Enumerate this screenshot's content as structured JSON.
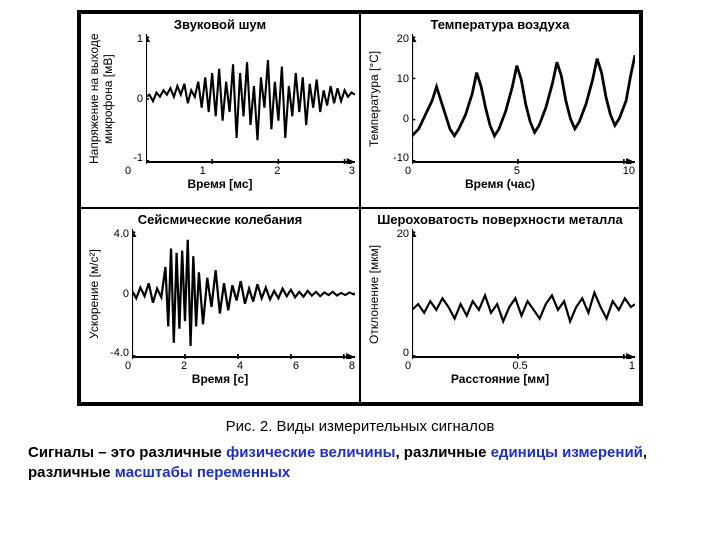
{
  "figure": {
    "panels": [
      {
        "key": "sound",
        "title": "Звуковой шум",
        "ylabel": "Напряжение на выходе\nмикрофона [мB]",
        "xlabel": "Время [мс]",
        "yticks": [
          "1",
          "0",
          "-1"
        ],
        "xticks": [
          "0",
          "1",
          "2",
          "3"
        ],
        "xlim": [
          0,
          3
        ],
        "ylim": [
          -1.5,
          1.5
        ],
        "line_color": "#000000",
        "line_width": 2,
        "data": [
          [
            0,
            0.05
          ],
          [
            0.05,
            0.1
          ],
          [
            0.1,
            -0.05
          ],
          [
            0.15,
            0.15
          ],
          [
            0.2,
            0.05
          ],
          [
            0.25,
            0.2
          ],
          [
            0.3,
            0.1
          ],
          [
            0.35,
            0.25
          ],
          [
            0.4,
            0.05
          ],
          [
            0.45,
            0.3
          ],
          [
            0.5,
            0.1
          ],
          [
            0.55,
            0.35
          ],
          [
            0.6,
            -0.1
          ],
          [
            0.65,
            0.2
          ],
          [
            0.7,
            0.05
          ],
          [
            0.75,
            0.4
          ],
          [
            0.8,
            -0.2
          ],
          [
            0.85,
            0.5
          ],
          [
            0.9,
            -0.3
          ],
          [
            0.95,
            0.6
          ],
          [
            1.0,
            -0.4
          ],
          [
            1.05,
            0.7
          ],
          [
            1.1,
            -0.5
          ],
          [
            1.15,
            0.4
          ],
          [
            1.2,
            -0.3
          ],
          [
            1.25,
            0.8
          ],
          [
            1.3,
            -0.9
          ],
          [
            1.35,
            0.6
          ],
          [
            1.4,
            -0.4
          ],
          [
            1.45,
            0.85
          ],
          [
            1.5,
            -0.6
          ],
          [
            1.55,
            0.3
          ],
          [
            1.6,
            -0.95
          ],
          [
            1.65,
            0.5
          ],
          [
            1.7,
            -0.2
          ],
          [
            1.75,
            0.9
          ],
          [
            1.8,
            -0.7
          ],
          [
            1.85,
            0.4
          ],
          [
            1.9,
            -0.5
          ],
          [
            1.95,
            0.75
          ],
          [
            2.0,
            -0.9
          ],
          [
            2.05,
            0.3
          ],
          [
            2.1,
            -0.4
          ],
          [
            2.15,
            0.6
          ],
          [
            2.2,
            -0.3
          ],
          [
            2.25,
            0.5
          ],
          [
            2.3,
            -0.6
          ],
          [
            2.35,
            0.35
          ],
          [
            2.4,
            -0.2
          ],
          [
            2.45,
            0.45
          ],
          [
            2.5,
            -0.3
          ],
          [
            2.55,
            0.2
          ],
          [
            2.6,
            -0.15
          ],
          [
            2.65,
            0.3
          ],
          [
            2.7,
            -0.1
          ],
          [
            2.75,
            0.25
          ],
          [
            2.8,
            -0.05
          ],
          [
            2.85,
            0.2
          ],
          [
            2.9,
            0.05
          ],
          [
            2.95,
            0.15
          ],
          [
            3.0,
            0.1
          ]
        ]
      },
      {
        "key": "temperature",
        "title": "Температура воздуха",
        "ylabel": "Температура [°С]",
        "xlabel": "Время (час)",
        "yticks": [
          "20",
          "10",
          "0",
          "-10"
        ],
        "xticks": [
          "0",
          "5",
          "10"
        ],
        "xlim": [
          0,
          10
        ],
        "ylim": [
          -12,
          25
        ],
        "line_color": "#000000",
        "line_width": 2.5,
        "data": [
          [
            0,
            -4
          ],
          [
            0.3,
            -2
          ],
          [
            0.6,
            2
          ],
          [
            0.9,
            6
          ],
          [
            1.1,
            10
          ],
          [
            1.3,
            6
          ],
          [
            1.5,
            2
          ],
          [
            1.7,
            -2
          ],
          [
            1.9,
            -4
          ],
          [
            2.1,
            -2
          ],
          [
            2.4,
            2
          ],
          [
            2.7,
            8
          ],
          [
            2.9,
            14
          ],
          [
            3.1,
            10
          ],
          [
            3.3,
            4
          ],
          [
            3.5,
            -1
          ],
          [
            3.7,
            -4
          ],
          [
            3.9,
            -2
          ],
          [
            4.2,
            3
          ],
          [
            4.5,
            10
          ],
          [
            4.7,
            16
          ],
          [
            4.9,
            12
          ],
          [
            5.1,
            5
          ],
          [
            5.3,
            0
          ],
          [
            5.5,
            -3
          ],
          [
            5.7,
            -1
          ],
          [
            6.0,
            4
          ],
          [
            6.3,
            11
          ],
          [
            6.5,
            17
          ],
          [
            6.7,
            13
          ],
          [
            6.9,
            6
          ],
          [
            7.1,
            1
          ],
          [
            7.3,
            -2
          ],
          [
            7.5,
            0
          ],
          [
            7.8,
            5
          ],
          [
            8.1,
            12
          ],
          [
            8.3,
            18
          ],
          [
            8.5,
            14
          ],
          [
            8.7,
            7
          ],
          [
            8.9,
            2
          ],
          [
            9.1,
            -1
          ],
          [
            9.3,
            1
          ],
          [
            9.6,
            6
          ],
          [
            9.8,
            13
          ],
          [
            10.0,
            19
          ]
        ]
      },
      {
        "key": "seismic",
        "title": "Сейсмические колебания",
        "ylabel": "Ускорение [м/с²]",
        "xlabel": "Время [с]",
        "yticks": [
          "4.0",
          "0",
          "-4.0"
        ],
        "xticks": [
          "0",
          "2",
          "4",
          "6",
          "8"
        ],
        "xlim": [
          0,
          8
        ],
        "ylim": [
          -6,
          6
        ],
        "line_color": "#000000",
        "line_width": 2,
        "data": [
          [
            0,
            0.3
          ],
          [
            0.15,
            -0.4
          ],
          [
            0.3,
            0.6
          ],
          [
            0.45,
            -0.2
          ],
          [
            0.6,
            1.0
          ],
          [
            0.75,
            -0.8
          ],
          [
            0.9,
            0.5
          ],
          [
            1.05,
            -0.3
          ],
          [
            1.2,
            2.5
          ],
          [
            1.3,
            -3.0
          ],
          [
            1.4,
            4.2
          ],
          [
            1.5,
            -4.5
          ],
          [
            1.6,
            3.8
          ],
          [
            1.7,
            -3.2
          ],
          [
            1.8,
            4.0
          ],
          [
            1.9,
            -2.5
          ],
          [
            2.0,
            5.0
          ],
          [
            2.1,
            -4.8
          ],
          [
            2.2,
            3.5
          ],
          [
            2.3,
            -3.0
          ],
          [
            2.4,
            2.0
          ],
          [
            2.55,
            -2.8
          ],
          [
            2.7,
            1.5
          ],
          [
            2.85,
            -1.2
          ],
          [
            3.0,
            2.2
          ],
          [
            3.15,
            -1.8
          ],
          [
            3.3,
            1.0
          ],
          [
            3.45,
            -1.5
          ],
          [
            3.6,
            0.8
          ],
          [
            3.75,
            -0.6
          ],
          [
            3.9,
            1.2
          ],
          [
            4.05,
            -0.9
          ],
          [
            4.2,
            0.5
          ],
          [
            4.35,
            -0.7
          ],
          [
            4.5,
            0.9
          ],
          [
            4.65,
            -0.4
          ],
          [
            4.8,
            0.6
          ],
          [
            4.95,
            -0.5
          ],
          [
            5.1,
            0.3
          ],
          [
            5.25,
            -0.4
          ],
          [
            5.4,
            0.5
          ],
          [
            5.55,
            -0.2
          ],
          [
            5.7,
            0.4
          ],
          [
            5.85,
            -0.3
          ],
          [
            6.0,
            0.2
          ],
          [
            6.15,
            -0.25
          ],
          [
            6.3,
            0.3
          ],
          [
            6.45,
            -0.15
          ],
          [
            6.6,
            0.2
          ],
          [
            6.75,
            -0.2
          ],
          [
            6.9,
            0.15
          ],
          [
            7.05,
            -0.1
          ],
          [
            7.2,
            0.2
          ],
          [
            7.35,
            -0.15
          ],
          [
            7.5,
            0.1
          ],
          [
            7.65,
            -0.1
          ],
          [
            7.8,
            0.15
          ],
          [
            7.95,
            -0.05
          ],
          [
            8.0,
            0.1
          ]
        ]
      },
      {
        "key": "roughness",
        "title": "Шероховатость поверхности металла",
        "ylabel": "Отклонение [мкм]",
        "xlabel": "Расстояние [мм]",
        "yticks": [
          "20",
          "0"
        ],
        "xticks": [
          "0",
          "0.5",
          "1"
        ],
        "xlim": [
          0,
          1.1
        ],
        "ylim": [
          -15,
          30
        ],
        "line_color": "#000000",
        "line_width": 2,
        "data": [
          [
            0,
            2
          ],
          [
            0.03,
            4
          ],
          [
            0.06,
            1
          ],
          [
            0.09,
            5
          ],
          [
            0.12,
            2
          ],
          [
            0.15,
            6
          ],
          [
            0.18,
            3
          ],
          [
            0.21,
            -1
          ],
          [
            0.24,
            4
          ],
          [
            0.27,
            0
          ],
          [
            0.3,
            5
          ],
          [
            0.33,
            2
          ],
          [
            0.36,
            7
          ],
          [
            0.39,
            1
          ],
          [
            0.42,
            4
          ],
          [
            0.45,
            -2
          ],
          [
            0.48,
            3
          ],
          [
            0.51,
            6
          ],
          [
            0.54,
            0
          ],
          [
            0.57,
            5
          ],
          [
            0.6,
            2
          ],
          [
            0.63,
            -1
          ],
          [
            0.66,
            4
          ],
          [
            0.69,
            7
          ],
          [
            0.72,
            2
          ],
          [
            0.75,
            5
          ],
          [
            0.78,
            -2
          ],
          [
            0.81,
            3
          ],
          [
            0.84,
            6
          ],
          [
            0.87,
            1
          ],
          [
            0.9,
            8
          ],
          [
            0.93,
            3
          ],
          [
            0.96,
            -1
          ],
          [
            0.99,
            5
          ],
          [
            1.02,
            2
          ],
          [
            1.05,
            6
          ],
          [
            1.08,
            3
          ],
          [
            1.1,
            4
          ]
        ]
      }
    ]
  },
  "caption": "Рис. 2. Виды измерительных сигналов",
  "description": {
    "prefix": "Сигналы – это различные ",
    "hl1": "физические величины",
    "mid1": ", различные ",
    "hl2": "единицы измерений",
    "mid2": ", различные ",
    "hl3": "масштабы переменных"
  },
  "style": {
    "axis_color": "#000000",
    "background": "#ffffff",
    "highlight_color": "#2030c0"
  }
}
